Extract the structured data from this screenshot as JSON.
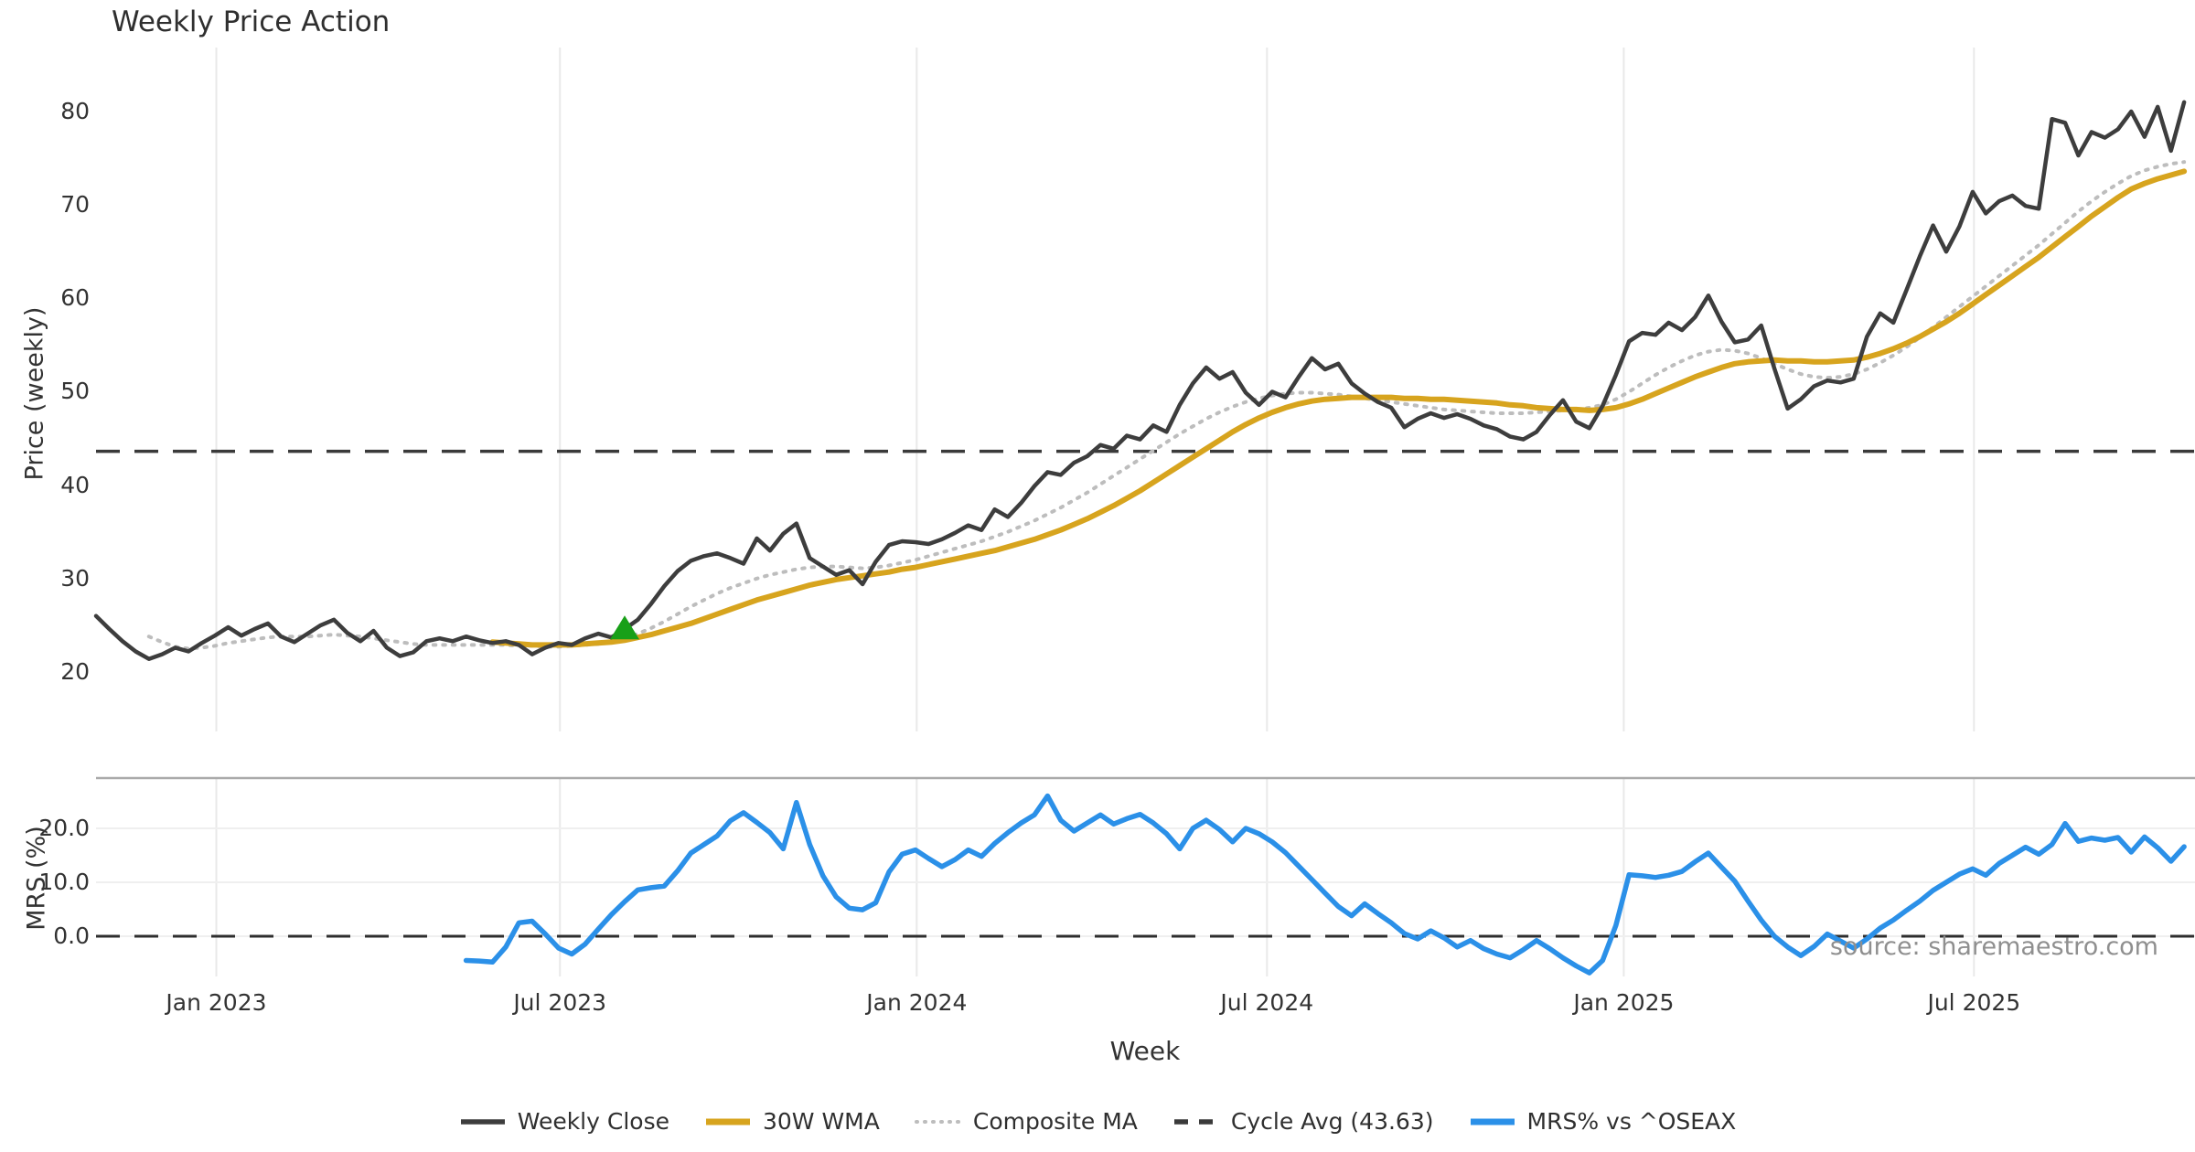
{
  "title": "Weekly Price Action",
  "source_note": "source: sharemaestro.com",
  "colors": {
    "close": "#3d3d3d",
    "wma": "#d7a41e",
    "composite": "#bdbdbd",
    "cycle_avg": "#3a3a3a",
    "mrs": "#2b90e8",
    "buy_marker": "#18a018",
    "grid": "#e9e9e9",
    "panel_border": "#aaaaaa",
    "text": "#333333",
    "source_text": "#8f8f8f"
  },
  "legend": {
    "items": [
      {
        "label": "Weekly Close",
        "color": "#3d3d3d",
        "style": "solid"
      },
      {
        "label": "30W WMA",
        "color": "#d7a41e",
        "style": "solid-thick"
      },
      {
        "label": "Composite MA",
        "color": "#bdbdbd",
        "style": "dotted"
      },
      {
        "label": "Cycle Avg (43.63)",
        "color": "#3a3a3a",
        "style": "dashed"
      },
      {
        "label": "MRS% vs ^OSEAX",
        "color": "#2b90e8",
        "style": "solid-thick"
      }
    ]
  },
  "chart_data": {
    "type": "line",
    "title": "Weekly Price Action",
    "xlabel": "Week",
    "x_is_weekly_index": true,
    "x_ticks": [
      {
        "pos": 9.1,
        "label": "Jan 2023"
      },
      {
        "pos": 35.1,
        "label": "Jul 2023"
      },
      {
        "pos": 62.1,
        "label": "Jan 2024"
      },
      {
        "pos": 88.6,
        "label": "Jul 2024"
      },
      {
        "pos": 115.6,
        "label": "Jan 2025"
      },
      {
        "pos": 142.1,
        "label": "Jul 2025"
      }
    ],
    "panels": [
      {
        "ylabel": "Price (weekly)",
        "ylim": [
          18.5,
          81.5
        ],
        "yticks": [
          {
            "v": 80,
            "label": "80"
          },
          {
            "v": 70,
            "label": "70"
          },
          {
            "v": 60,
            "label": "60"
          },
          {
            "v": 50,
            "label": "50"
          },
          {
            "v": 40,
            "label": "40"
          },
          {
            "v": 30,
            "label": "30"
          },
          {
            "v": 20,
            "label": "20"
          }
        ],
        "hline": {
          "value": 43.63,
          "label": "Cycle Avg (43.63)"
        },
        "buy_marker": {
          "week": 40,
          "value": 23.5
        },
        "series": [
          {
            "name": "Weekly Close",
            "values": [
              26.0,
              24.6,
              23.3,
              22.2,
              21.4,
              21.9,
              22.6,
              22.2,
              23.1,
              23.9,
              24.8,
              23.9,
              24.6,
              25.2,
              23.8,
              23.2,
              24.1,
              25.0,
              25.6,
              24.2,
              23.3,
              24.4,
              22.6,
              21.7,
              22.1,
              23.3,
              23.6,
              23.3,
              23.8,
              23.4,
              23.1,
              23.3,
              22.9,
              21.9,
              22.6,
              23.1,
              22.9,
              23.6,
              24.1,
              23.7,
              24.6,
              25.6,
              27.3,
              29.2,
              30.8,
              31.9,
              32.4,
              32.7,
              32.2,
              31.6,
              34.3,
              33.0,
              34.8,
              35.9,
              32.2,
              31.3,
              30.4,
              30.9,
              29.4,
              31.8,
              33.6,
              34.0,
              33.9,
              33.7,
              34.2,
              34.9,
              35.7,
              35.2,
              37.4,
              36.6,
              38.1,
              39.9,
              41.4,
              41.1,
              42.4,
              43.1,
              44.3,
              43.9,
              45.3,
              44.9,
              46.4,
              45.7,
              48.6,
              50.9,
              52.6,
              51.4,
              52.1,
              49.9,
              48.6,
              50.0,
              49.4,
              51.6,
              53.6,
              52.4,
              53.0,
              50.9,
              49.8,
              48.9,
              48.3,
              46.2,
              47.1,
              47.7,
              47.2,
              47.6,
              47.1,
              46.4,
              46.0,
              45.2,
              44.9,
              45.7,
              47.5,
              49.1,
              46.8,
              46.1,
              48.5,
              51.8,
              55.4,
              56.3,
              56.1,
              57.4,
              56.6,
              58.0,
              60.3,
              57.5,
              55.3,
              55.6,
              57.1,
              52.5,
              48.2,
              49.2,
              50.6,
              51.2,
              51.0,
              51.4,
              55.9,
              58.4,
              57.4,
              60.9,
              64.5,
              67.8,
              65.0,
              67.7,
              71.4,
              69.1,
              70.4,
              71.0,
              69.9,
              69.6,
              79.2,
              78.8,
              75.3,
              77.8,
              77.2,
              78.1,
              80.0,
              77.3,
              80.5,
              75.8,
              81.0
            ]
          },
          {
            "name": "30W WMA",
            "values": [
              null,
              null,
              null,
              null,
              null,
              null,
              null,
              null,
              null,
              null,
              null,
              null,
              null,
              null,
              null,
              null,
              null,
              null,
              null,
              null,
              null,
              null,
              null,
              null,
              null,
              null,
              null,
              null,
              null,
              null,
              23.2,
              23.1,
              23.0,
              22.9,
              22.9,
              22.9,
              22.9,
              23.0,
              23.1,
              23.2,
              23.4,
              23.7,
              24.0,
              24.4,
              24.8,
              25.2,
              25.7,
              26.2,
              26.7,
              27.2,
              27.7,
              28.1,
              28.5,
              28.9,
              29.3,
              29.6,
              29.9,
              30.1,
              30.3,
              30.5,
              30.7,
              31.0,
              31.2,
              31.5,
              31.8,
              32.1,
              32.4,
              32.7,
              33.0,
              33.4,
              33.8,
              34.2,
              34.7,
              35.2,
              35.8,
              36.4,
              37.1,
              37.8,
              38.6,
              39.4,
              40.3,
              41.2,
              42.1,
              43.0,
              43.9,
              44.8,
              45.7,
              46.5,
              47.2,
              47.8,
              48.3,
              48.7,
              49.0,
              49.2,
              49.3,
              49.4,
              49.4,
              49.4,
              49.4,
              49.3,
              49.3,
              49.2,
              49.2,
              49.1,
              49.0,
              48.9,
              48.8,
              48.6,
              48.5,
              48.3,
              48.2,
              48.1,
              48.1,
              48.0,
              48.1,
              48.3,
              48.7,
              49.2,
              49.8,
              50.4,
              51.0,
              51.6,
              52.1,
              52.6,
              53.0,
              53.2,
              53.3,
              53.4,
              53.3,
              53.3,
              53.2,
              53.2,
              53.3,
              53.4,
              53.7,
              54.1,
              54.6,
              55.2,
              55.9,
              56.7,
              57.5,
              58.4,
              59.4,
              60.4,
              61.4,
              62.4,
              63.4,
              64.4,
              65.5,
              66.6,
              67.7,
              68.8,
              69.8,
              70.8,
              71.7,
              72.3,
              72.8,
              73.2,
              73.6
            ]
          },
          {
            "name": "Composite MA",
            "values": [
              null,
              null,
              null,
              null,
              23.8,
              23.2,
              22.7,
              22.5,
              22.6,
              22.8,
              23.1,
              23.3,
              23.5,
              23.7,
              23.8,
              23.8,
              23.8,
              23.9,
              24.0,
              23.9,
              23.8,
              23.6,
              23.4,
              23.2,
              23.0,
              22.9,
              22.9,
              22.9,
              22.9,
              22.9,
              22.9,
              22.9,
              22.8,
              22.8,
              22.7,
              22.7,
              22.8,
              22.9,
              23.0,
              23.2,
              23.6,
              24.1,
              24.7,
              25.4,
              26.2,
              27.0,
              27.7,
              28.4,
              29.0,
              29.5,
              30.0,
              30.4,
              30.7,
              31.0,
              31.2,
              31.3,
              31.3,
              31.2,
              31.1,
              31.2,
              31.4,
              31.7,
              32.0,
              32.4,
              32.8,
              33.2,
              33.6,
              34.0,
              34.5,
              35.0,
              35.6,
              36.2,
              36.9,
              37.6,
              38.4,
              39.2,
              40.1,
              41.0,
              41.9,
              42.8,
              43.7,
              44.6,
              45.5,
              46.3,
              47.1,
              47.8,
              48.4,
              48.9,
              49.3,
              49.6,
              49.8,
              49.9,
              49.9,
              49.8,
              49.7,
              49.5,
              49.3,
              49.1,
              48.9,
              48.7,
              48.5,
              48.3,
              48.1,
              48.0,
              47.9,
              47.8,
              47.7,
              47.7,
              47.7,
              47.8,
              47.9,
              48.0,
              48.1,
              48.3,
              48.6,
              49.2,
              50.0,
              50.9,
              51.8,
              52.6,
              53.3,
              53.9,
              54.3,
              54.5,
              54.4,
              54.1,
              53.6,
              53.0,
              52.4,
              51.9,
              51.6,
              51.5,
              51.6,
              51.9,
              52.4,
              53.1,
              53.9,
              54.8,
              55.8,
              56.9,
              58.0,
              59.1,
              60.2,
              61.3,
              62.4,
              63.5,
              64.6,
              65.7,
              66.9,
              68.1,
              69.3,
              70.4,
              71.4,
              72.3,
              73.1,
              73.7,
              74.1,
              74.4,
              74.6
            ]
          }
        ]
      },
      {
        "ylabel": "MRS (%)",
        "ylim": [
          -8.5,
          29.0
        ],
        "yticks": [
          {
            "v": 20,
            "label": "20.0"
          },
          {
            "v": 10,
            "label": "10.0"
          },
          {
            "v": 0,
            "label": "0.0"
          }
        ],
        "hline": {
          "value": 0.0,
          "label": "zero line"
        },
        "series": [
          {
            "name": "MRS% vs ^OSEAX",
            "values": [
              null,
              null,
              null,
              null,
              null,
              null,
              null,
              null,
              null,
              null,
              null,
              null,
              null,
              null,
              null,
              null,
              null,
              null,
              null,
              null,
              null,
              null,
              null,
              null,
              null,
              null,
              null,
              null,
              -4.5,
              -4.6,
              -4.8,
              -2.0,
              2.5,
              2.8,
              0.4,
              -2.2,
              -3.3,
              -1.5,
              1.3,
              4.0,
              6.4,
              8.6,
              9.0,
              9.3,
              12.1,
              15.4,
              17.0,
              18.6,
              21.4,
              22.9,
              21.1,
              19.2,
              16.2,
              24.8,
              17.0,
              11.2,
              7.3,
              5.2,
              4.9,
              6.2,
              11.9,
              15.2,
              16.0,
              14.4,
              12.9,
              14.2,
              16.0,
              14.8,
              17.2,
              19.2,
              21.0,
              22.5,
              26.0,
              21.5,
              19.5,
              21.0,
              22.5,
              20.8,
              21.8,
              22.6,
              21.0,
              19.0,
              16.2,
              20.0,
              21.5,
              19.8,
              17.5,
              20.0,
              19.0,
              17.5,
              15.5,
              13.0,
              10.5,
              8.0,
              5.5,
              3.8,
              6.0,
              4.2,
              2.5,
              0.5,
              -0.5,
              1.0,
              -0.3,
              -2.0,
              -0.8,
              -2.3,
              -3.3,
              -4.0,
              -2.5,
              -0.8,
              -2.3,
              -4.0,
              -5.5,
              -6.8,
              -4.5,
              2.0,
              11.4,
              11.2,
              10.9,
              11.3,
              12.0,
              13.8,
              15.4,
              12.8,
              10.2,
              6.5,
              3.0,
              0.0,
              -2.0,
              -3.6,
              -1.9,
              0.4,
              -0.9,
              -2.2,
              -0.5,
              1.5,
              3.0,
              4.8,
              6.5,
              8.5,
              10.0,
              11.5,
              12.5,
              11.3,
              13.5,
              15.0,
              16.5,
              15.2,
              17.0,
              20.9,
              17.6,
              18.2,
              17.8,
              18.3,
              15.6,
              18.4,
              16.4,
              13.9,
              16.6
            ]
          }
        ]
      }
    ]
  }
}
